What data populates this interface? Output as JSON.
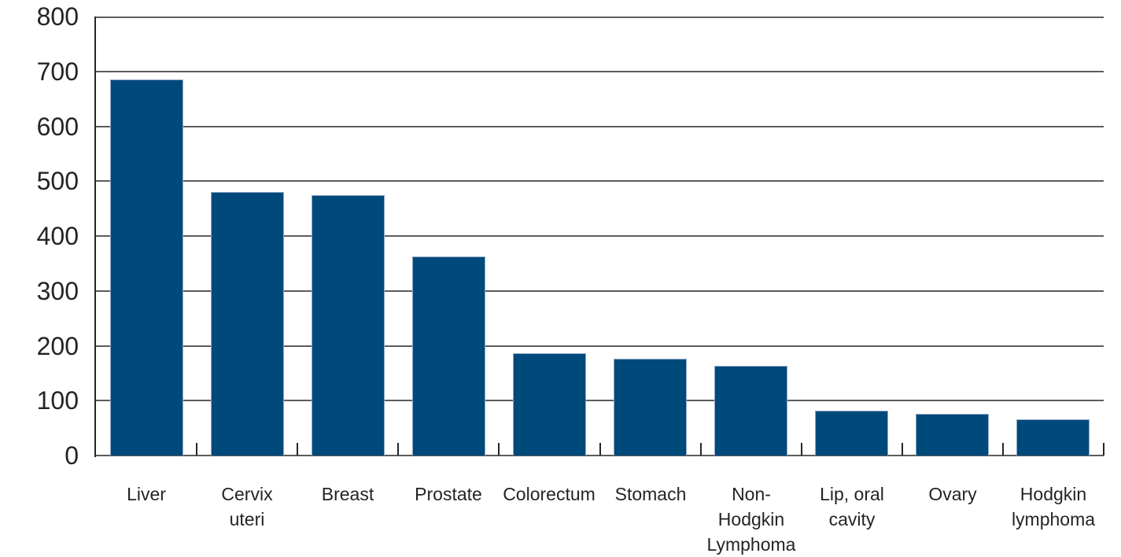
{
  "chart_data": {
    "type": "bar",
    "title": "",
    "xlabel": "",
    "ylabel": "",
    "categories": [
      "Liver",
      "Cervix uteri",
      "Breast",
      "Prostate",
      "Colorectum",
      "Stomach",
      "Non-Hodgkin Lymphoma",
      "Lip, oral cavity",
      "Ovary",
      "Hodgkin lymphoma"
    ],
    "category_labels": [
      "Liver",
      "Cervix\nuteri",
      "Breast",
      "Prostate",
      "Colorectum",
      "Stomach",
      "Non-\nHodgkin\nLymphoma",
      "Lip, oral\ncavity",
      "Ovary",
      "Hodgkin\nlymphoma"
    ],
    "values": [
      685,
      481,
      475,
      363,
      186,
      177,
      164,
      82,
      76,
      66
    ],
    "ylim": [
      0,
      800
    ],
    "yticks": [
      0,
      100,
      200,
      300,
      400,
      500,
      600,
      700,
      800
    ],
    "grid": true,
    "legend": false,
    "colors": {
      "bar_fill": "#00497B",
      "bar_edge": "#8FA8C5",
      "gridline": "#5C5C5C",
      "y_axis_line": "#262626",
      "x_axis_line": "#5C5C5C",
      "boundary_tick": "#262626",
      "text": "#242424",
      "background": "#FFFFFF"
    }
  }
}
